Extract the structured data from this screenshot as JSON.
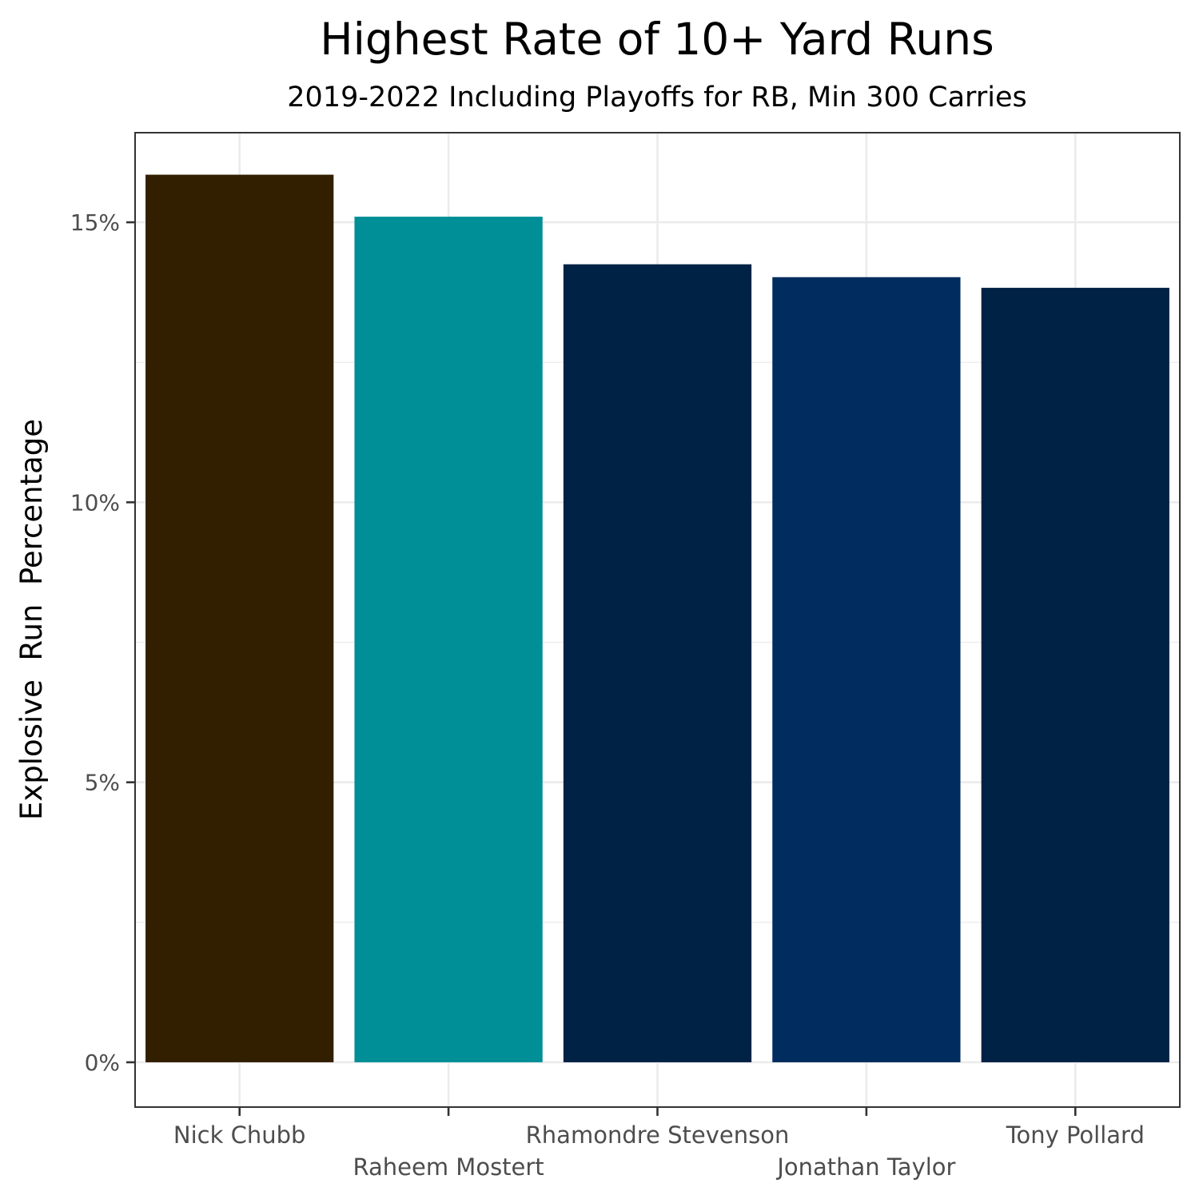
{
  "chart_data": {
    "type": "bar",
    "title": "Highest Rate of 10+ Yard Runs",
    "subtitle": "2019-2022 Including Playoffs for RB, Min 300 Carries",
    "xlabel": "",
    "ylabel": "Explosive  Run  Percentage",
    "categories": [
      "Nick Chubb",
      "Raheem Mostert",
      "Rhamondre Stevenson",
      "Jonathan Taylor",
      "Tony Pollard"
    ],
    "values": [
      15.85,
      15.1,
      14.25,
      14.02,
      13.83
    ],
    "bar_colors": [
      "#311f00",
      "#008e97",
      "#002244",
      "#002c5f",
      "#002244"
    ],
    "ylim": [
      -0.8,
      16.6
    ],
    "yticks": [
      0,
      5,
      10,
      15
    ],
    "ytick_labels": [
      "0%",
      "5%",
      "10%",
      "15%"
    ],
    "grid": true,
    "legend": "none"
  }
}
